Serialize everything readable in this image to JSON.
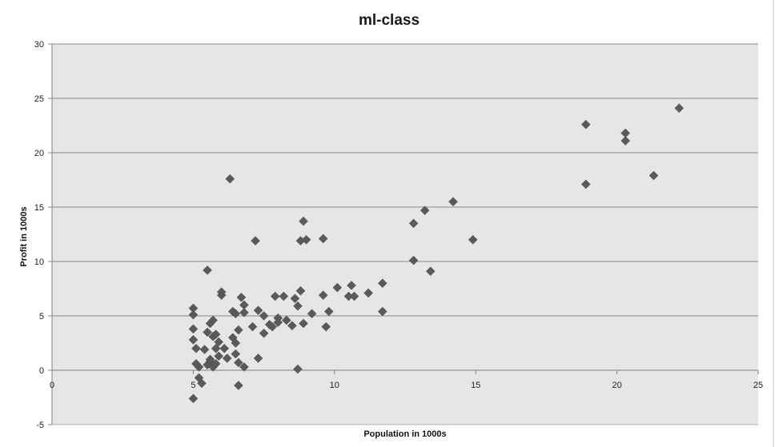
{
  "chart_data": {
    "type": "scatter",
    "title": "ml-class",
    "xlabel": "Population  in 1000s",
    "ylabel": "Profit in 1000s",
    "xlim": [
      0,
      25
    ],
    "ylim": [
      -5,
      30
    ],
    "x_ticks": [
      "0",
      "5",
      "10",
      "15",
      "20",
      "25"
    ],
    "y_ticks": [
      "-5",
      "0",
      "5",
      "10",
      "15",
      "20",
      "25",
      "30"
    ],
    "grid": "horizontal",
    "legend": "none",
    "colors": {
      "marker": "#5a5a5a",
      "plot_bg": "#e6e6e6",
      "grid": "#8a8a8a"
    },
    "points": [
      [
        5.0,
        -2.6
      ],
      [
        5.1,
        0.6
      ],
      [
        5.2,
        -0.7
      ],
      [
        5.3,
        -1.2
      ],
      [
        5.2,
        0.3
      ],
      [
        5.0,
        2.8
      ],
      [
        5.0,
        3.8
      ],
      [
        5.0,
        5.7
      ],
      [
        5.0,
        5.1
      ],
      [
        5.1,
        2.0
      ],
      [
        5.4,
        1.9
      ],
      [
        5.5,
        3.5
      ],
      [
        5.6,
        4.3
      ],
      [
        5.7,
        4.6
      ],
      [
        5.5,
        9.2
      ],
      [
        5.6,
        0.8
      ],
      [
        5.5,
        0.5
      ],
      [
        5.7,
        0.3
      ],
      [
        5.8,
        0.6
      ],
      [
        5.6,
        1.0
      ],
      [
        5.9,
        1.3
      ],
      [
        5.7,
        3.1
      ],
      [
        5.8,
        3.3
      ],
      [
        5.8,
        2.0
      ],
      [
        5.9,
        2.6
      ],
      [
        6.0,
        6.9
      ],
      [
        6.0,
        7.2
      ],
      [
        6.1,
        2.0
      ],
      [
        6.2,
        1.1
      ],
      [
        6.4,
        3.0
      ],
      [
        6.4,
        5.4
      ],
      [
        6.5,
        5.2
      ],
      [
        6.5,
        2.5
      ],
      [
        6.5,
        1.5
      ],
      [
        6.6,
        0.7
      ],
      [
        6.6,
        3.7
      ],
      [
        6.7,
        6.7
      ],
      [
        6.8,
        6.0
      ],
      [
        6.8,
        5.3
      ],
      [
        6.8,
        0.3
      ],
      [
        6.3,
        17.6
      ],
      [
        6.6,
        -1.4
      ],
      [
        7.1,
        4.0
      ],
      [
        7.2,
        11.9
      ],
      [
        7.3,
        1.1
      ],
      [
        7.3,
        5.5
      ],
      [
        7.5,
        3.4
      ],
      [
        7.5,
        5.0
      ],
      [
        7.7,
        4.2
      ],
      [
        7.8,
        4.0
      ],
      [
        7.9,
        6.8
      ],
      [
        8.0,
        4.4
      ],
      [
        8.0,
        4.8
      ],
      [
        8.2,
        6.8
      ],
      [
        8.3,
        4.6
      ],
      [
        8.5,
        4.1
      ],
      [
        8.6,
        6.6
      ],
      [
        8.7,
        5.9
      ],
      [
        8.7,
        0.1
      ],
      [
        8.8,
        7.3
      ],
      [
        8.8,
        11.9
      ],
      [
        8.9,
        4.3
      ],
      [
        8.9,
        13.7
      ],
      [
        9.0,
        12.0
      ],
      [
        9.2,
        5.2
      ],
      [
        9.6,
        6.9
      ],
      [
        9.6,
        12.1
      ],
      [
        9.7,
        4.0
      ],
      [
        9.8,
        5.4
      ],
      [
        10.1,
        7.6
      ],
      [
        10.5,
        6.8
      ],
      [
        10.7,
        6.8
      ],
      [
        10.6,
        7.8
      ],
      [
        11.2,
        7.1
      ],
      [
        11.7,
        8.0
      ],
      [
        11.7,
        5.4
      ],
      [
        12.8,
        13.5
      ],
      [
        12.8,
        10.1
      ],
      [
        13.2,
        14.7
      ],
      [
        13.4,
        9.1
      ],
      [
        14.2,
        15.5
      ],
      [
        14.9,
        12.0
      ],
      [
        18.9,
        22.6
      ],
      [
        18.9,
        17.1
      ],
      [
        20.3,
        21.8
      ],
      [
        20.3,
        21.1
      ],
      [
        21.3,
        17.9
      ],
      [
        22.2,
        24.1
      ]
    ]
  }
}
